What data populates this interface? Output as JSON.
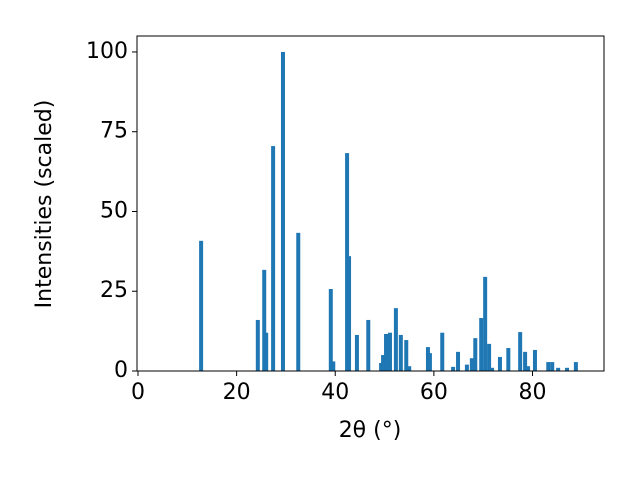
{
  "chart_data": {
    "type": "bar",
    "x_label": "2θ (°)",
    "y_label": "Intensities (scaled)",
    "color": "#1f77b4",
    "grid": false,
    "x": [
      12.8,
      24.3,
      25.6,
      26.0,
      27.4,
      29.4,
      32.5,
      39.1,
      39.6,
      42.4,
      42.8,
      44.4,
      46.7,
      49.3,
      49.7,
      50.3,
      51.1,
      52.3,
      53.3,
      54.4,
      55.0,
      58.8,
      59.2,
      61.7,
      63.9,
      64.9,
      66.7,
      67.7,
      68.4,
      69.6,
      70.4,
      71.2,
      71.8,
      73.4,
      75.1,
      77.5,
      78.5,
      79.1,
      80.5,
      83.2,
      84.0,
      85.2,
      87.0,
      88.8
    ],
    "values": [
      40.8,
      16,
      31.7,
      12,
      70.5,
      100,
      43.3,
      25.7,
      3,
      68.3,
      36,
      11.3,
      16,
      2.5,
      5,
      11.6,
      12,
      19.7,
      11.3,
      9.7,
      1.5,
      7.5,
      5.6,
      12,
      1.3,
      6,
      2,
      4,
      10.3,
      16.6,
      29.5,
      8.5,
      1,
      4.4,
      7.2,
      12.2,
      6,
      1.5,
      6.6,
      2.8,
      2.8,
      1,
      1,
      2.8
    ],
    "xlim": [
      -0.2,
      94.5
    ],
    "ylim": [
      0,
      105
    ],
    "xticks": [
      0,
      20,
      40,
      60,
      80
    ],
    "yticks": [
      0,
      25,
      50,
      75,
      100
    ]
  }
}
